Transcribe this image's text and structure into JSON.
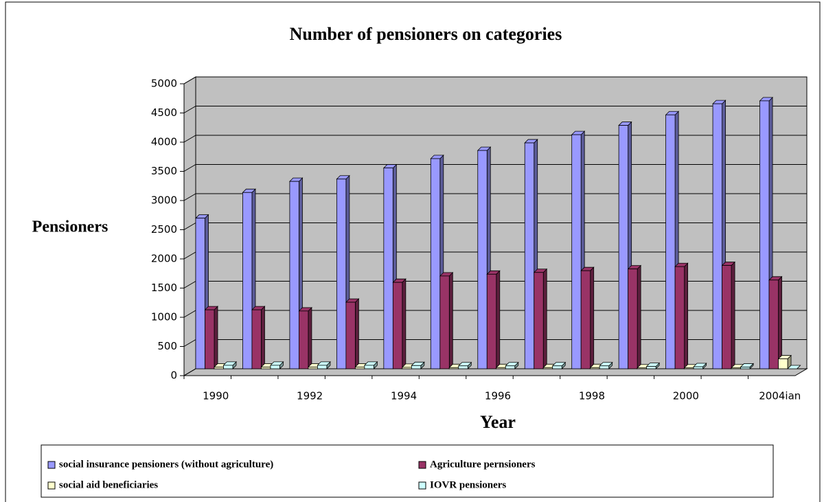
{
  "chart_data": {
    "type": "bar3d",
    "title": "Number of pensioners on categories",
    "xlabel": "Year",
    "ylabel": "Pensioners",
    "categories": [
      "1990",
      null,
      "1992",
      null,
      "1994",
      null,
      "1996",
      null,
      "1998",
      null,
      "2000",
      null,
      "2004ian"
    ],
    "series": [
      {
        "name": "social insurance pensioners (without agriculture)",
        "color": "#9999ff",
        "values": [
          2580,
          3020,
          3210,
          3250,
          3440,
          3600,
          3740,
          3870,
          4010,
          4170,
          4350,
          4540,
          4590
        ]
      },
      {
        "name": "Agriculture pernsioners",
        "color": "#993366",
        "values": [
          1010,
          1010,
          990,
          1140,
          1480,
          1590,
          1620,
          1650,
          1680,
          1710,
          1750,
          1770,
          1520
        ]
      },
      {
        "name": "social aid beneficiaries",
        "color": "#ffffcc",
        "values": [
          30,
          30,
          30,
          30,
          25,
          20,
          20,
          20,
          20,
          15,
          15,
          15,
          170
        ]
      },
      {
        "name": "IOVR pensioners",
        "color": "#ccffff",
        "values": [
          60,
          60,
          60,
          60,
          55,
          50,
          50,
          50,
          50,
          40,
          35,
          30,
          0
        ]
      }
    ],
    "ylim": [
      0,
      5000
    ],
    "yticks": [
      0,
      500,
      1000,
      1500,
      2000,
      2500,
      3000,
      3500,
      4000,
      4500,
      5000
    ],
    "grid": true
  }
}
